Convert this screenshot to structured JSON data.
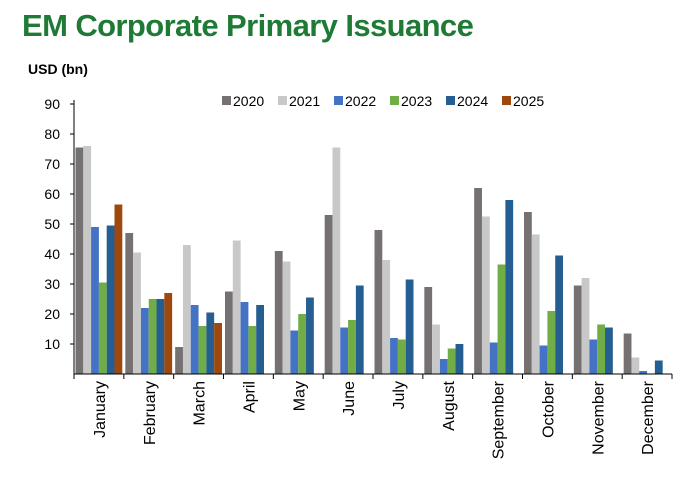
{
  "header": {
    "title": "EM Corporate Primary Issuance",
    "unit_label": "USD (bn)"
  },
  "chart_data": {
    "type": "bar",
    "title": "EM Corporate Primary Issuance",
    "ylabel": "USD (bn)",
    "xlabel": "",
    "ylim": [
      0,
      90
    ],
    "yticks": [
      10,
      20,
      30,
      40,
      50,
      60,
      70,
      80,
      90
    ],
    "grid": false,
    "legend_position": "top",
    "categories": [
      "January",
      "February",
      "March",
      "April",
      "May",
      "June",
      "July",
      "August",
      "September",
      "October",
      "November",
      "December"
    ],
    "series": [
      {
        "name": "2020",
        "color": "#767171",
        "values": [
          75.5,
          47,
          9,
          27.5,
          41,
          53,
          48,
          29,
          62,
          54,
          29.5,
          13.5
        ]
      },
      {
        "name": "2021",
        "color": "#c8c8c8",
        "values": [
          76,
          40.5,
          43,
          44.5,
          37.5,
          75.5,
          38,
          16.5,
          52.5,
          46.5,
          32,
          5.5
        ]
      },
      {
        "name": "2022",
        "color": "#4472c4",
        "values": [
          49,
          22,
          23,
          24,
          14.5,
          15.5,
          12,
          5,
          10.5,
          9.5,
          11.5,
          1
        ]
      },
      {
        "name": "2023",
        "color": "#70ad47",
        "values": [
          30.5,
          25,
          16,
          16,
          20,
          18,
          11.5,
          8.5,
          36.5,
          21,
          16.5,
          0
        ]
      },
      {
        "name": "2024",
        "color": "#255e91",
        "values": [
          49.5,
          25,
          20.5,
          23,
          25.5,
          29.5,
          31.5,
          10,
          58,
          39.5,
          15.5,
          4.5
        ]
      },
      {
        "name": "2025",
        "color": "#9e480e",
        "values": [
          56.5,
          27,
          17,
          0,
          0,
          0,
          0,
          0,
          0,
          0,
          0,
          0
        ]
      }
    ]
  }
}
